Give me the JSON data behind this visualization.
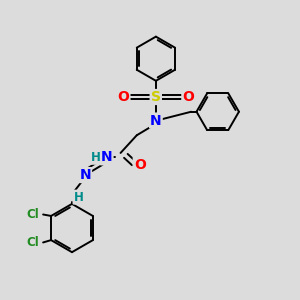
{
  "bg_color": "#dcdcdc",
  "bond_color": "#000000",
  "bond_width": 1.4,
  "atom_colors": {
    "S": "#cccc00",
    "O": "#ff0000",
    "N": "#0000ff",
    "Cl": "#228b22",
    "H": "#008b8b",
    "C": "#000000"
  },
  "font_size_atom": 10,
  "font_size_small": 8.5
}
